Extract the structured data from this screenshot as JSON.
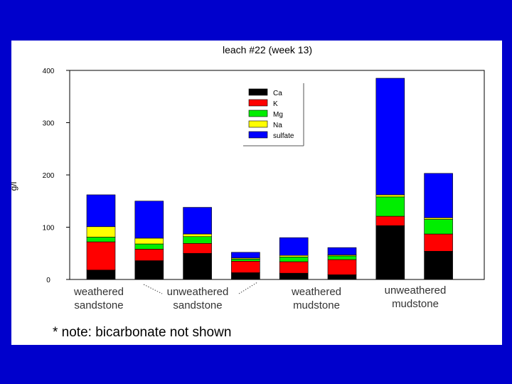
{
  "group_labels": [
    {
      "line1": "weathered",
      "line2": "sandstone"
    },
    {
      "line1": "unweathered",
      "line2": "sandstone"
    },
    {
      "line1": "weathered",
      "line2": "mudstone"
    },
    {
      "line1": "unweathered",
      "line2": "mudstone"
    }
  ],
  "note": "* note: bicarbonate not shown",
  "chart_data": {
    "type": "bar",
    "stacked": true,
    "title": "leach #22 (week 13)",
    "ylabel": "g/l",
    "ylim": [
      0,
      400
    ],
    "yticks": [
      0,
      100,
      200,
      300,
      400
    ],
    "categories": [
      "",
      "",
      "",
      "",
      "",
      "",
      "",
      ""
    ],
    "series": [
      {
        "name": "Ca",
        "color": "#000000",
        "values": [
          18,
          36,
          50,
          13,
          12,
          9,
          103,
          54
        ]
      },
      {
        "name": "K",
        "color": "#ff0000",
        "values": [
          54,
          22,
          19,
          22,
          22,
          29,
          18,
          33
        ]
      },
      {
        "name": "Mg",
        "color": "#00ee00",
        "values": [
          9,
          10,
          13,
          4,
          9,
          7,
          37,
          28
        ]
      },
      {
        "name": "Na",
        "color": "#ffff00",
        "values": [
          20,
          11,
          5,
          2,
          3,
          2,
          4,
          3
        ]
      },
      {
        "name": "sulfate",
        "color": "#0000ff",
        "values": [
          61,
          71,
          51,
          11,
          34,
          14,
          223,
          85
        ]
      }
    ],
    "legend": "top-center",
    "grid": false
  }
}
